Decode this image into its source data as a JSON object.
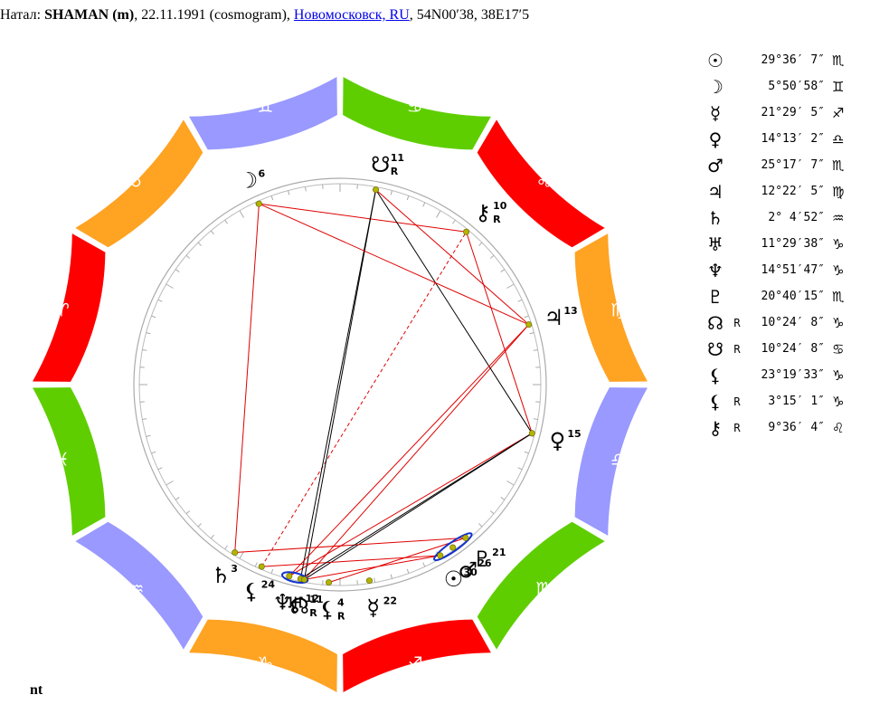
{
  "header": {
    "prefix": "Натал: ",
    "name": "SHAMAN (m)",
    "middle": ", 22.11.1991 (cosmogram), ",
    "place": "Новомосковск, RU",
    "suffix": ", 54N00′38, 38E17′5"
  },
  "footer": {
    "text": "nt"
  },
  "zodiac": [
    {
      "glyph": "♈",
      "name": "aries",
      "color": "#ff0000"
    },
    {
      "glyph": "♉",
      "name": "taurus",
      "color": "#ffa323"
    },
    {
      "glyph": "♊",
      "name": "gemini",
      "color": "#9999ff"
    },
    {
      "glyph": "♋",
      "name": "cancer",
      "color": "#5fce00"
    },
    {
      "glyph": "♌",
      "name": "leo",
      "color": "#ff0000"
    },
    {
      "glyph": "♍",
      "name": "virgo",
      "color": "#ffa323"
    },
    {
      "glyph": "♎",
      "name": "libra",
      "color": "#9999ff"
    },
    {
      "glyph": "♏",
      "name": "scorpio",
      "color": "#5fce00"
    },
    {
      "glyph": "♐",
      "name": "sagittarius",
      "color": "#ff0000"
    },
    {
      "glyph": "♑",
      "name": "capricorn",
      "color": "#ffa323"
    },
    {
      "glyph": "♒",
      "name": "aquarius",
      "color": "#9999ff"
    },
    {
      "glyph": "♓",
      "name": "pisces",
      "color": "#5fce00"
    }
  ],
  "planets": [
    {
      "id": "sun",
      "glyph": "☉",
      "rx": "",
      "pos": "29°36′ 7″",
      "sign": "♏",
      "lon": 239.6,
      "deg": "30"
    },
    {
      "id": "moon",
      "glyph": "☽",
      "rx": "",
      "pos": "5°50′58″",
      "sign": "♊",
      "lon": 65.85,
      "deg": "6"
    },
    {
      "id": "mercury",
      "glyph": "☿",
      "rx": "",
      "pos": "21°29′ 5″",
      "sign": "♐",
      "lon": 261.48,
      "deg": "22"
    },
    {
      "id": "venus",
      "glyph": "♀",
      "rx": "",
      "pos": "14°13′ 2″",
      "sign": "♎",
      "lon": 194.22,
      "deg": "15"
    },
    {
      "id": "mars",
      "glyph": "♂",
      "rx": "",
      "pos": "25°17′ 7″",
      "sign": "♏",
      "lon": 235.29,
      "deg": "26"
    },
    {
      "id": "jupiter",
      "glyph": "♃",
      "rx": "",
      "pos": "12°22′ 5″",
      "sign": "♍",
      "lon": 162.37,
      "deg": "13"
    },
    {
      "id": "saturn",
      "glyph": "♄",
      "rx": "",
      "pos": "2° 4′52″",
      "sign": "♒",
      "lon": 302.08,
      "deg": "3"
    },
    {
      "id": "uranus",
      "glyph": "♅",
      "rx": "",
      "pos": "11°29′38″",
      "sign": "♑",
      "lon": 281.49,
      "deg": "12"
    },
    {
      "id": "neptune",
      "glyph": "♆",
      "rx": "",
      "pos": "14°51′47″",
      "sign": "♑",
      "lon": 284.86,
      "deg": ""
    },
    {
      "id": "pluto",
      "glyph": "♇",
      "rx": "",
      "pos": "20°40′15″",
      "sign": "♏",
      "lon": 230.67,
      "deg": "21"
    },
    {
      "id": "north-node",
      "glyph": "☊",
      "rx": "R",
      "pos": "10°24′ 8″",
      "sign": "♑",
      "lon": 280.4,
      "deg": "11"
    },
    {
      "id": "south-node",
      "glyph": "☋",
      "rx": "R",
      "pos": "10°24′ 8″",
      "sign": "♋",
      "lon": 100.4,
      "deg": "11"
    },
    {
      "id": "lilith",
      "glyph": "⚸",
      "rx": "",
      "pos": "23°19′33″",
      "sign": "♑",
      "lon": 293.33,
      "deg": "24"
    },
    {
      "id": "selena",
      "glyph": "⚸",
      "rx": "R",
      "pos": "3°15′ 1″",
      "sign": "♑",
      "lon": 273.25,
      "deg": "4"
    },
    {
      "id": "chiron",
      "glyph": "⚷",
      "rx": "R",
      "pos": "9°36′ 4″",
      "sign": "♌",
      "lon": 129.6,
      "deg": "10"
    }
  ],
  "ring_labels": {
    "neptune_extra": "5",
    "north_node_rx": "R",
    "selena_rx": "R",
    "south_node_rx": "R",
    "chiron_rx": "R"
  }
}
